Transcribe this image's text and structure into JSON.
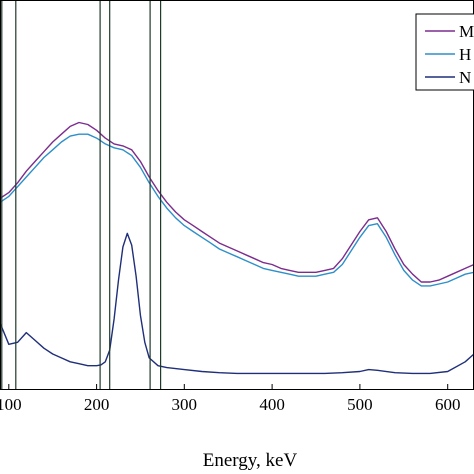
{
  "chart_data": {
    "type": "line",
    "xlabel": "Energy, keV",
    "ylabel": "",
    "title": "",
    "xlim": [
      90,
      630
    ],
    "ylim": [
      0,
      1
    ],
    "x_ticks": [
      {
        "value": 100,
        "label": "100"
      },
      {
        "value": 200,
        "label": "200"
      },
      {
        "value": 300,
        "label": "300"
      },
      {
        "value": 400,
        "label": "400"
      },
      {
        "value": 500,
        "label": "500"
      },
      {
        "value": 600,
        "label": "600"
      }
    ],
    "grid": false,
    "legend_position": "top-right",
    "vertical_lines": [
      92,
      108,
      204,
      215,
      261,
      273
    ],
    "series": [
      {
        "name": "M",
        "color": "#7b2d8e",
        "x": [
          90,
          100,
          110,
          120,
          130,
          140,
          150,
          160,
          170,
          180,
          190,
          200,
          210,
          220,
          230,
          240,
          250,
          260,
          270,
          280,
          290,
          300,
          310,
          320,
          330,
          340,
          350,
          360,
          370,
          380,
          390,
          400,
          410,
          420,
          430,
          440,
          450,
          460,
          470,
          480,
          490,
          500,
          510,
          520,
          530,
          540,
          550,
          560,
          570,
          580,
          590,
          600,
          610,
          620,
          630
        ],
        "y": [
          0.49,
          0.505,
          0.53,
          0.56,
          0.585,
          0.61,
          0.635,
          0.655,
          0.675,
          0.685,
          0.68,
          0.665,
          0.645,
          0.63,
          0.625,
          0.615,
          0.585,
          0.545,
          0.51,
          0.48,
          0.455,
          0.435,
          0.42,
          0.405,
          0.39,
          0.375,
          0.365,
          0.355,
          0.345,
          0.335,
          0.325,
          0.32,
          0.31,
          0.305,
          0.3,
          0.3,
          0.3,
          0.305,
          0.31,
          0.335,
          0.37,
          0.405,
          0.435,
          0.44,
          0.405,
          0.36,
          0.32,
          0.295,
          0.275,
          0.275,
          0.28,
          0.29,
          0.3,
          0.31,
          0.32
        ]
      },
      {
        "name": "H",
        "color": "#2e8fc9",
        "x": [
          90,
          100,
          110,
          120,
          130,
          140,
          150,
          160,
          170,
          180,
          190,
          200,
          210,
          220,
          230,
          240,
          250,
          260,
          270,
          280,
          290,
          300,
          310,
          320,
          330,
          340,
          350,
          360,
          370,
          380,
          390,
          400,
          410,
          420,
          430,
          440,
          450,
          460,
          470,
          480,
          490,
          500,
          510,
          520,
          530,
          540,
          550,
          560,
          570,
          580,
          590,
          600,
          610,
          620,
          630
        ],
        "y": [
          0.48,
          0.495,
          0.52,
          0.545,
          0.57,
          0.595,
          0.615,
          0.635,
          0.65,
          0.655,
          0.655,
          0.645,
          0.63,
          0.62,
          0.615,
          0.6,
          0.57,
          0.53,
          0.495,
          0.465,
          0.44,
          0.42,
          0.405,
          0.39,
          0.375,
          0.36,
          0.35,
          0.34,
          0.33,
          0.32,
          0.31,
          0.305,
          0.3,
          0.295,
          0.29,
          0.29,
          0.29,
          0.295,
          0.3,
          0.32,
          0.355,
          0.39,
          0.42,
          0.425,
          0.39,
          0.345,
          0.305,
          0.28,
          0.265,
          0.265,
          0.27,
          0.275,
          0.285,
          0.295,
          0.3
        ]
      },
      {
        "name": "N",
        "color": "#1f2f7a",
        "x": [
          90,
          100,
          110,
          120,
          130,
          140,
          150,
          160,
          170,
          180,
          190,
          200,
          205,
          210,
          215,
          220,
          225,
          230,
          235,
          240,
          245,
          250,
          255,
          260,
          270,
          280,
          300,
          320,
          340,
          360,
          380,
          400,
          420,
          440,
          460,
          480,
          500,
          510,
          520,
          540,
          560,
          580,
          600,
          620,
          630
        ],
        "y": [
          0.17,
          0.115,
          0.12,
          0.145,
          0.125,
          0.105,
          0.09,
          0.08,
          0.07,
          0.065,
          0.06,
          0.06,
          0.062,
          0.07,
          0.1,
          0.18,
          0.28,
          0.365,
          0.4,
          0.37,
          0.29,
          0.19,
          0.12,
          0.08,
          0.06,
          0.055,
          0.05,
          0.045,
          0.042,
          0.04,
          0.04,
          0.04,
          0.04,
          0.04,
          0.04,
          0.042,
          0.045,
          0.05,
          0.048,
          0.042,
          0.04,
          0.04,
          0.045,
          0.07,
          0.09
        ]
      }
    ]
  }
}
